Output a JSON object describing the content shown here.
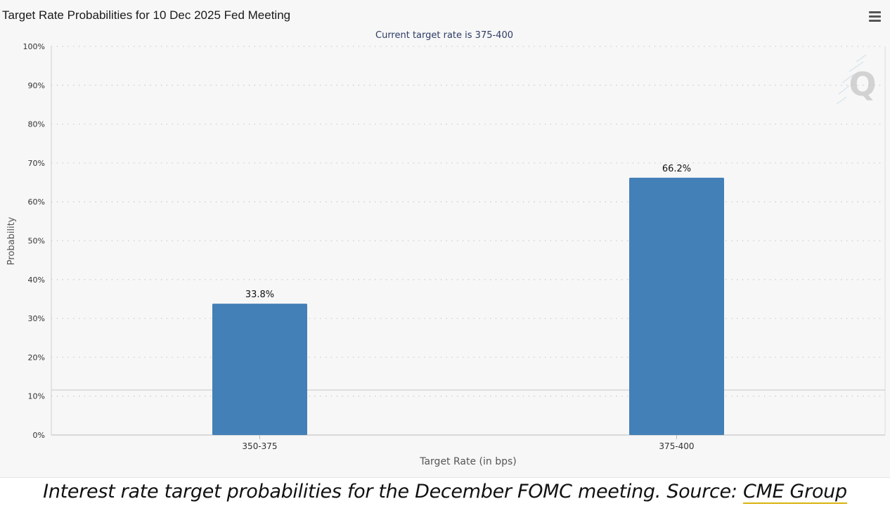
{
  "chart_data": {
    "type": "bar",
    "title": "Target Rate Probabilities for 10 Dec 2025 Fed Meeting",
    "subtitle": "Current target rate is 375-400",
    "xlabel": "Target Rate (in bps)",
    "ylabel": "Probability",
    "categories": [
      "350-375",
      "375-400"
    ],
    "values": [
      33.8,
      66.2
    ],
    "data_labels": [
      "33.8%",
      "66.2%"
    ],
    "ylim": [
      0,
      100
    ],
    "yticks": [
      0,
      10,
      20,
      30,
      40,
      50,
      60,
      70,
      80,
      90,
      100
    ],
    "ytick_labels": [
      "0%",
      "10%",
      "20%",
      "30%",
      "40%",
      "50%",
      "60%",
      "70%",
      "80%",
      "90%",
      "100%"
    ],
    "grid": "dotted horizontal",
    "bar_color": "#4380b7"
  },
  "caption": {
    "text": "Interest rate target probabilities for the December FOMC meeting. Source: ",
    "link": "CME Group"
  },
  "colors": {
    "background": "#f7f7f7",
    "bar": "#4380b7",
    "link_underline": "#d9b310"
  },
  "icons": {
    "menu": "hamburger-menu-icon",
    "watermark": "q-logo-icon"
  }
}
